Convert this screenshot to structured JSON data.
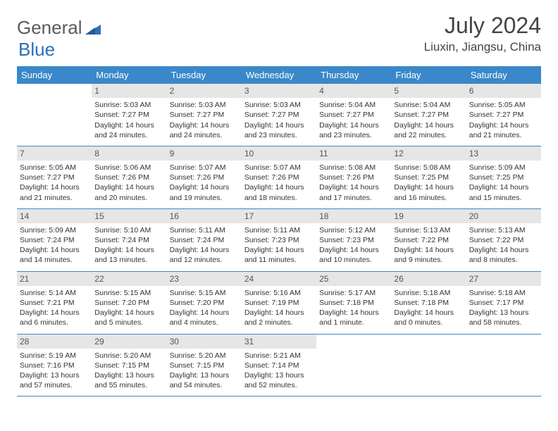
{
  "brand": {
    "part1": "General",
    "part2": "Blue"
  },
  "title": "July 2024",
  "location": "Liuxin, Jiangsu, China",
  "colors": {
    "header_bg": "#3a88c9",
    "header_text": "#ffffff",
    "daynum_bg": "#e6e6e6",
    "border": "#3a88c9",
    "logo_gray": "#5a5a5a",
    "logo_blue": "#2f6fb3"
  },
  "weekdays": [
    "Sunday",
    "Monday",
    "Tuesday",
    "Wednesday",
    "Thursday",
    "Friday",
    "Saturday"
  ],
  "weeks": [
    [
      null,
      {
        "n": "1",
        "sr": "Sunrise: 5:03 AM",
        "ss": "Sunset: 7:27 PM",
        "dl1": "Daylight: 14 hours",
        "dl2": "and 24 minutes."
      },
      {
        "n": "2",
        "sr": "Sunrise: 5:03 AM",
        "ss": "Sunset: 7:27 PM",
        "dl1": "Daylight: 14 hours",
        "dl2": "and 24 minutes."
      },
      {
        "n": "3",
        "sr": "Sunrise: 5:03 AM",
        "ss": "Sunset: 7:27 PM",
        "dl1": "Daylight: 14 hours",
        "dl2": "and 23 minutes."
      },
      {
        "n": "4",
        "sr": "Sunrise: 5:04 AM",
        "ss": "Sunset: 7:27 PM",
        "dl1": "Daylight: 14 hours",
        "dl2": "and 23 minutes."
      },
      {
        "n": "5",
        "sr": "Sunrise: 5:04 AM",
        "ss": "Sunset: 7:27 PM",
        "dl1": "Daylight: 14 hours",
        "dl2": "and 22 minutes."
      },
      {
        "n": "6",
        "sr": "Sunrise: 5:05 AM",
        "ss": "Sunset: 7:27 PM",
        "dl1": "Daylight: 14 hours",
        "dl2": "and 21 minutes."
      }
    ],
    [
      {
        "n": "7",
        "sr": "Sunrise: 5:05 AM",
        "ss": "Sunset: 7:27 PM",
        "dl1": "Daylight: 14 hours",
        "dl2": "and 21 minutes."
      },
      {
        "n": "8",
        "sr": "Sunrise: 5:06 AM",
        "ss": "Sunset: 7:26 PM",
        "dl1": "Daylight: 14 hours",
        "dl2": "and 20 minutes."
      },
      {
        "n": "9",
        "sr": "Sunrise: 5:07 AM",
        "ss": "Sunset: 7:26 PM",
        "dl1": "Daylight: 14 hours",
        "dl2": "and 19 minutes."
      },
      {
        "n": "10",
        "sr": "Sunrise: 5:07 AM",
        "ss": "Sunset: 7:26 PM",
        "dl1": "Daylight: 14 hours",
        "dl2": "and 18 minutes."
      },
      {
        "n": "11",
        "sr": "Sunrise: 5:08 AM",
        "ss": "Sunset: 7:26 PM",
        "dl1": "Daylight: 14 hours",
        "dl2": "and 17 minutes."
      },
      {
        "n": "12",
        "sr": "Sunrise: 5:08 AM",
        "ss": "Sunset: 7:25 PM",
        "dl1": "Daylight: 14 hours",
        "dl2": "and 16 minutes."
      },
      {
        "n": "13",
        "sr": "Sunrise: 5:09 AM",
        "ss": "Sunset: 7:25 PM",
        "dl1": "Daylight: 14 hours",
        "dl2": "and 15 minutes."
      }
    ],
    [
      {
        "n": "14",
        "sr": "Sunrise: 5:09 AM",
        "ss": "Sunset: 7:24 PM",
        "dl1": "Daylight: 14 hours",
        "dl2": "and 14 minutes."
      },
      {
        "n": "15",
        "sr": "Sunrise: 5:10 AM",
        "ss": "Sunset: 7:24 PM",
        "dl1": "Daylight: 14 hours",
        "dl2": "and 13 minutes."
      },
      {
        "n": "16",
        "sr": "Sunrise: 5:11 AM",
        "ss": "Sunset: 7:24 PM",
        "dl1": "Daylight: 14 hours",
        "dl2": "and 12 minutes."
      },
      {
        "n": "17",
        "sr": "Sunrise: 5:11 AM",
        "ss": "Sunset: 7:23 PM",
        "dl1": "Daylight: 14 hours",
        "dl2": "and 11 minutes."
      },
      {
        "n": "18",
        "sr": "Sunrise: 5:12 AM",
        "ss": "Sunset: 7:23 PM",
        "dl1": "Daylight: 14 hours",
        "dl2": "and 10 minutes."
      },
      {
        "n": "19",
        "sr": "Sunrise: 5:13 AM",
        "ss": "Sunset: 7:22 PM",
        "dl1": "Daylight: 14 hours",
        "dl2": "and 9 minutes."
      },
      {
        "n": "20",
        "sr": "Sunrise: 5:13 AM",
        "ss": "Sunset: 7:22 PM",
        "dl1": "Daylight: 14 hours",
        "dl2": "and 8 minutes."
      }
    ],
    [
      {
        "n": "21",
        "sr": "Sunrise: 5:14 AM",
        "ss": "Sunset: 7:21 PM",
        "dl1": "Daylight: 14 hours",
        "dl2": "and 6 minutes."
      },
      {
        "n": "22",
        "sr": "Sunrise: 5:15 AM",
        "ss": "Sunset: 7:20 PM",
        "dl1": "Daylight: 14 hours",
        "dl2": "and 5 minutes."
      },
      {
        "n": "23",
        "sr": "Sunrise: 5:15 AM",
        "ss": "Sunset: 7:20 PM",
        "dl1": "Daylight: 14 hours",
        "dl2": "and 4 minutes."
      },
      {
        "n": "24",
        "sr": "Sunrise: 5:16 AM",
        "ss": "Sunset: 7:19 PM",
        "dl1": "Daylight: 14 hours",
        "dl2": "and 2 minutes."
      },
      {
        "n": "25",
        "sr": "Sunrise: 5:17 AM",
        "ss": "Sunset: 7:18 PM",
        "dl1": "Daylight: 14 hours",
        "dl2": "and 1 minute."
      },
      {
        "n": "26",
        "sr": "Sunrise: 5:18 AM",
        "ss": "Sunset: 7:18 PM",
        "dl1": "Daylight: 14 hours",
        "dl2": "and 0 minutes."
      },
      {
        "n": "27",
        "sr": "Sunrise: 5:18 AM",
        "ss": "Sunset: 7:17 PM",
        "dl1": "Daylight: 13 hours",
        "dl2": "and 58 minutes."
      }
    ],
    [
      {
        "n": "28",
        "sr": "Sunrise: 5:19 AM",
        "ss": "Sunset: 7:16 PM",
        "dl1": "Daylight: 13 hours",
        "dl2": "and 57 minutes."
      },
      {
        "n": "29",
        "sr": "Sunrise: 5:20 AM",
        "ss": "Sunset: 7:15 PM",
        "dl1": "Daylight: 13 hours",
        "dl2": "and 55 minutes."
      },
      {
        "n": "30",
        "sr": "Sunrise: 5:20 AM",
        "ss": "Sunset: 7:15 PM",
        "dl1": "Daylight: 13 hours",
        "dl2": "and 54 minutes."
      },
      {
        "n": "31",
        "sr": "Sunrise: 5:21 AM",
        "ss": "Sunset: 7:14 PM",
        "dl1": "Daylight: 13 hours",
        "dl2": "and 52 minutes."
      },
      null,
      null,
      null
    ]
  ]
}
